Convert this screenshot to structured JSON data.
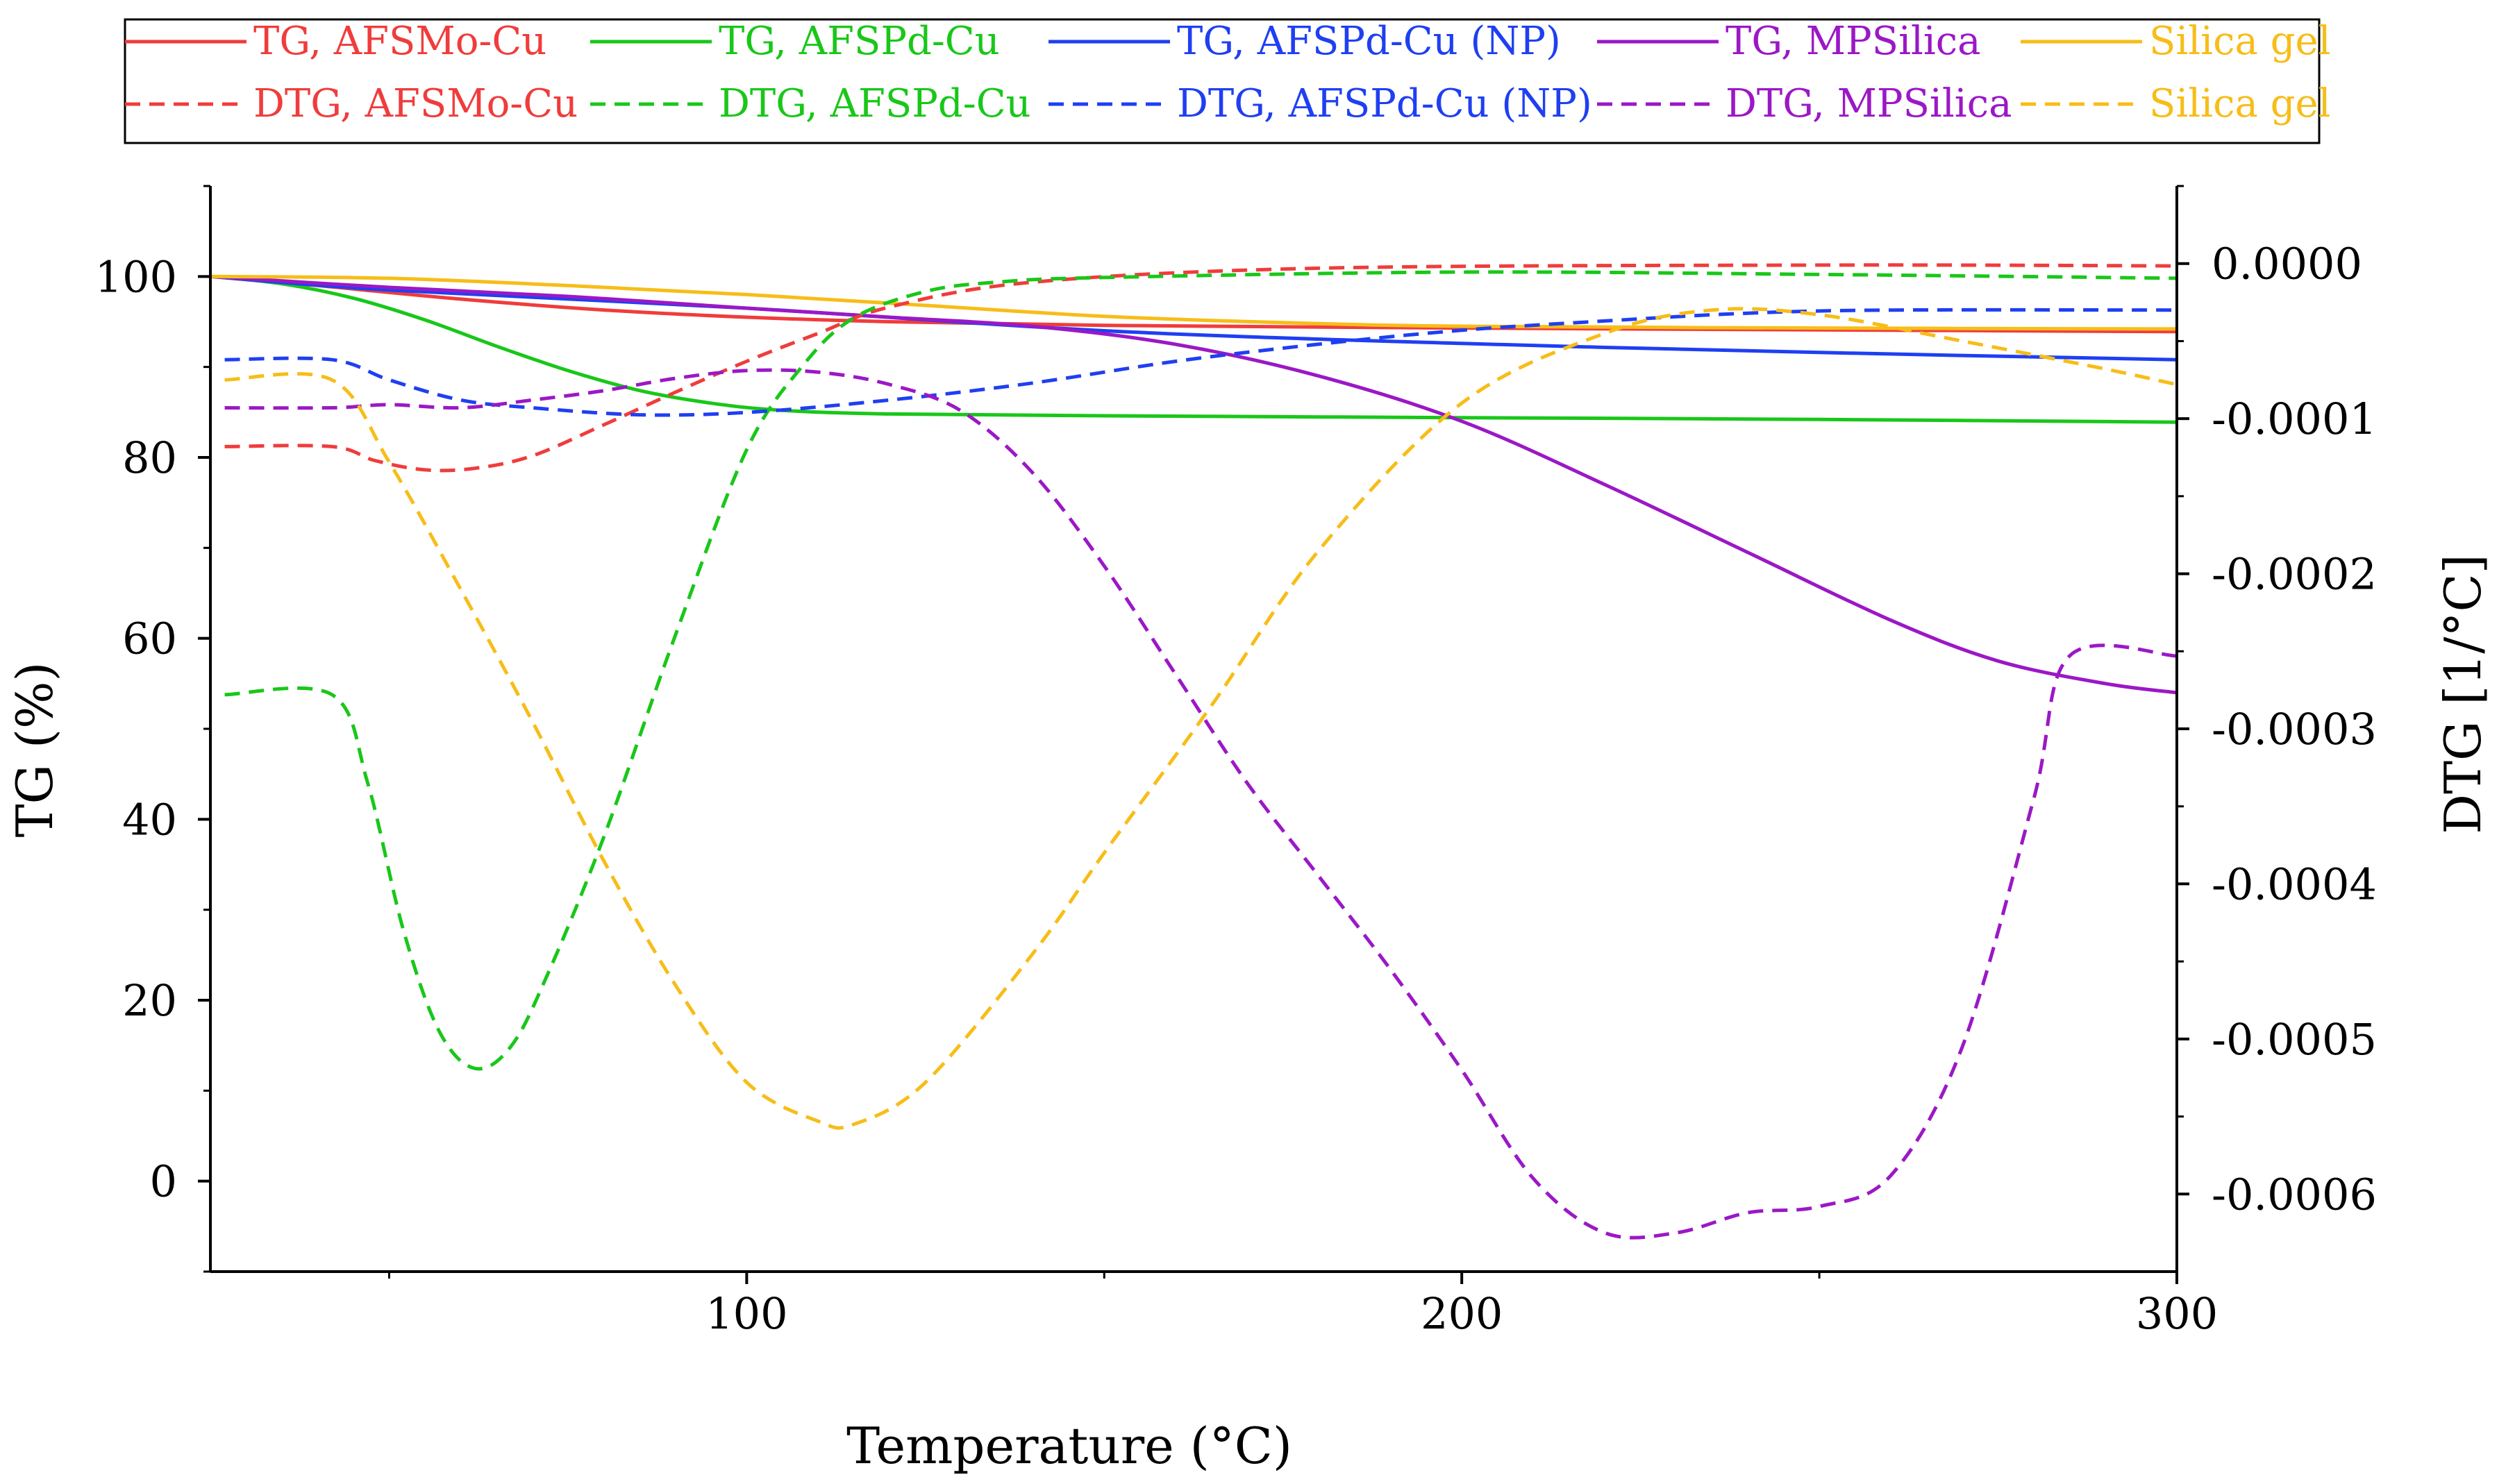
{
  "chart_data": {
    "type": "line",
    "xlabel": "Temperature (°C)",
    "ylabel_left": "TG (%)",
    "ylabel_right": "DTG [1/°C]",
    "xlim": [
      25,
      300
    ],
    "ylim_left": [
      -10,
      110
    ],
    "ylim_right": [
      -0.00065,
      5e-05
    ],
    "x_ticks": [
      100,
      200,
      300
    ],
    "x_minor_ticks": [
      50,
      150,
      250
    ],
    "y_ticks_left": [
      0,
      20,
      40,
      60,
      80,
      100
    ],
    "y_ticks_right": [
      {
        "value": 0,
        "label": "0.0000"
      },
      {
        "value": -0.0001,
        "label": "-0.0001"
      },
      {
        "value": -0.0002,
        "label": "-0.0002"
      },
      {
        "value": -0.0003,
        "label": "-0.0003"
      },
      {
        "value": -0.0004,
        "label": "-0.0004"
      },
      {
        "value": -0.0005,
        "label": "-0.0005"
      },
      {
        "value": -0.0006,
        "label": "-0.0006"
      }
    ],
    "legend_position": "top",
    "series": [
      {
        "name": "TG, AFSMo-Cu",
        "axis": "left",
        "style": "solid",
        "color": "#f03c3c",
        "x": [
          25,
          40,
          60,
          80,
          100,
          120,
          150,
          200,
          250,
          300
        ],
        "y": [
          100,
          99,
          97.5,
          96.3,
          95.5,
          95,
          94.6,
          94.3,
          94.1,
          93.9
        ]
      },
      {
        "name": "TG, AFSPd-Cu",
        "axis": "left",
        "style": "solid",
        "color": "#19c719",
        "x": [
          25,
          35,
          45,
          55,
          65,
          75,
          85,
          95,
          105,
          120,
          150,
          200,
          250,
          300
        ],
        "y": [
          100,
          99.2,
          97.6,
          95.2,
          92.3,
          89.6,
          87.4,
          86,
          85.2,
          84.8,
          84.6,
          84.4,
          84.2,
          83.9
        ]
      },
      {
        "name": "TG, AFSPd-Cu (NP)",
        "axis": "left",
        "style": "solid",
        "color": "#1f3ff2",
        "x": [
          25,
          50,
          100,
          150,
          200,
          250,
          300
        ],
        "y": [
          100,
          98.5,
          96.5,
          94,
          92.6,
          91.6,
          90.8
        ]
      },
      {
        "name": "TG, MPSilica",
        "axis": "left",
        "style": "solid",
        "color": "#9b18c6",
        "x": [
          25,
          50,
          75,
          100,
          120,
          140,
          160,
          180,
          200,
          220,
          240,
          260,
          275,
          290,
          300
        ],
        "y": [
          100,
          98.8,
          97.8,
          96.5,
          95.5,
          94.5,
          92.5,
          89,
          84,
          77,
          69.5,
          62,
          57.5,
          55,
          54
        ]
      },
      {
        "name": "Silica gel",
        "axis": "left",
        "style": "solid",
        "color": "#f7bd18",
        "x": [
          25,
          50,
          75,
          100,
          125,
          150,
          175,
          200,
          250,
          300
        ],
        "y": [
          100,
          99.8,
          99,
          98,
          96.8,
          95.6,
          94.9,
          94.5,
          94.3,
          94.2
        ]
      },
      {
        "name": "DTG, AFSMo-Cu",
        "axis": "right",
        "style": "dashed",
        "color": "#f03c3c",
        "x": [
          27,
          42,
          48,
          55,
          62,
          70,
          80,
          90,
          100,
          110,
          120,
          140,
          180,
          250,
          300
        ],
        "y": [
          -0.000118,
          -0.000118,
          -0.000127,
          -0.000133,
          -0.000132,
          -0.000124,
          -0.000104,
          -8.3e-05,
          -6.3e-05,
          -4.5e-05,
          -2.8e-05,
          -1.2e-05,
          -3e-06,
          -1e-06,
          -1.5e-06
        ]
      },
      {
        "name": "DTG, AFSPd-Cu",
        "axis": "right",
        "style": "dashed",
        "color": "#19c719",
        "x": [
          27,
          42,
          47,
          52,
          57,
          62,
          67,
          72,
          80,
          90,
          100,
          108,
          115,
          125,
          135,
          150,
          200,
          250,
          300
        ],
        "y": [
          -0.000278,
          -0.000278,
          -0.000335,
          -0.00043,
          -0.000495,
          -0.000519,
          -0.000505,
          -0.00046,
          -0.00037,
          -0.00024,
          -0.00012,
          -6.5e-05,
          -3.5e-05,
          -1.8e-05,
          -1.2e-05,
          -9e-06,
          -5.5e-06,
          -7e-06,
          -9.5e-06
        ]
      },
      {
        "name": "DTG, AFSPd-Cu (NP)",
        "axis": "right",
        "style": "dashed",
        "color": "#1f3ff2",
        "x": [
          27,
          42,
          50,
          60,
          70,
          85,
          100,
          120,
          140,
          160,
          180,
          200,
          220,
          240,
          260,
          300
        ],
        "y": [
          -6.2e-05,
          -6.2e-05,
          -7.5e-05,
          -8.8e-05,
          -9.3e-05,
          -9.75e-05,
          -9.6e-05,
          -8.8e-05,
          -7.7e-05,
          -6.3e-05,
          -5.2e-05,
          -4.3e-05,
          -3.7e-05,
          -3.2e-05,
          -3e-05,
          -3e-05
        ]
      },
      {
        "name": "DTG, MPSilica",
        "axis": "right",
        "style": "dashed",
        "color": "#9b18c6",
        "x": [
          27,
          42,
          50,
          60,
          70,
          80,
          90,
          100,
          110,
          120,
          130,
          140,
          150,
          160,
          170,
          180,
          190,
          200,
          210,
          220,
          230,
          240,
          250,
          260,
          270,
          280,
          285,
          300
        ],
        "y": [
          -9.3e-05,
          -9.3e-05,
          -9.1e-05,
          -9.3e-05,
          -8.8e-05,
          -8.2e-05,
          -7.4e-05,
          -6.9e-05,
          -7e-05,
          -7.8e-05,
          -9.5e-05,
          -0.000135,
          -0.000195,
          -0.000265,
          -0.000335,
          -0.000395,
          -0.000455,
          -0.00052,
          -0.00059,
          -0.000625,
          -0.000625,
          -0.000612,
          -0.000608,
          -0.000588,
          -0.000505,
          -0.000345,
          -0.000253,
          -0.000253
        ]
      },
      {
        "name": "Silica gel",
        "axis": "right",
        "style": "dashed",
        "color": "#f7bd18",
        "x": [
          27,
          42,
          50,
          60,
          70,
          80,
          90,
          100,
          110,
          115,
          125,
          140,
          150,
          165,
          180,
          200,
          220,
          235,
          250,
          270,
          290,
          300
        ],
        "y": [
          -7.5e-05,
          -7.5e-05,
          -0.000128,
          -0.00021,
          -0.000295,
          -0.000385,
          -0.000465,
          -0.000528,
          -0.000553,
          -0.000555,
          -0.000528,
          -0.000445,
          -0.00038,
          -0.000285,
          -0.000185,
          -9e-05,
          -4.5e-05,
          -3e-05,
          -3.3e-05,
          -5e-05,
          -6.8e-05,
          -7.8e-05
        ]
      }
    ]
  }
}
